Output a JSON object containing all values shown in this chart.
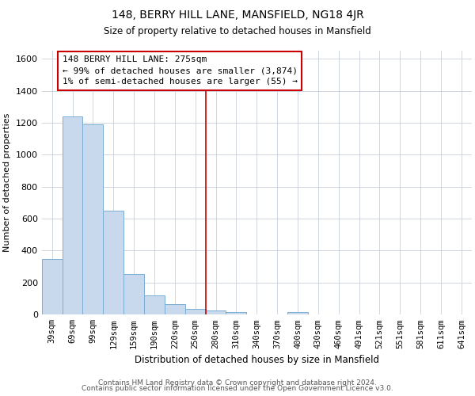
{
  "title": "148, BERRY HILL LANE, MANSFIELD, NG18 4JR",
  "subtitle": "Size of property relative to detached houses in Mansfield",
  "xlabel": "Distribution of detached houses by size in Mansfield",
  "ylabel": "Number of detached properties",
  "bar_labels": [
    "39sqm",
    "69sqm",
    "99sqm",
    "129sqm",
    "159sqm",
    "190sqm",
    "220sqm",
    "250sqm",
    "280sqm",
    "310sqm",
    "340sqm",
    "370sqm",
    "400sqm",
    "430sqm",
    "460sqm",
    "491sqm",
    "521sqm",
    "551sqm",
    "581sqm",
    "611sqm",
    "641sqm"
  ],
  "bar_values": [
    350,
    1240,
    1190,
    650,
    255,
    120,
    65,
    35,
    25,
    14,
    0,
    0,
    14,
    0,
    0,
    0,
    0,
    0,
    0,
    0,
    0
  ],
  "bar_color": "#c8d9ee",
  "bar_edge_color": "#7aaed4",
  "vline_x": 8,
  "vline_color": "#cc0000",
  "annotation_text": "148 BERRY HILL LANE: 275sqm\n← 99% of detached houses are smaller (3,874)\n1% of semi-detached houses are larger (55) →",
  "annotation_box_edge_color": "#cc0000",
  "ylim": [
    0,
    1650
  ],
  "yticks": [
    0,
    200,
    400,
    600,
    800,
    1000,
    1200,
    1400,
    1600
  ],
  "footer_lines": [
    "Contains HM Land Registry data © Crown copyright and database right 2024.",
    "Contains public sector information licensed under the Open Government Licence v3.0."
  ],
  "background_color": "#ffffff",
  "grid_color": "#c8d0dc"
}
